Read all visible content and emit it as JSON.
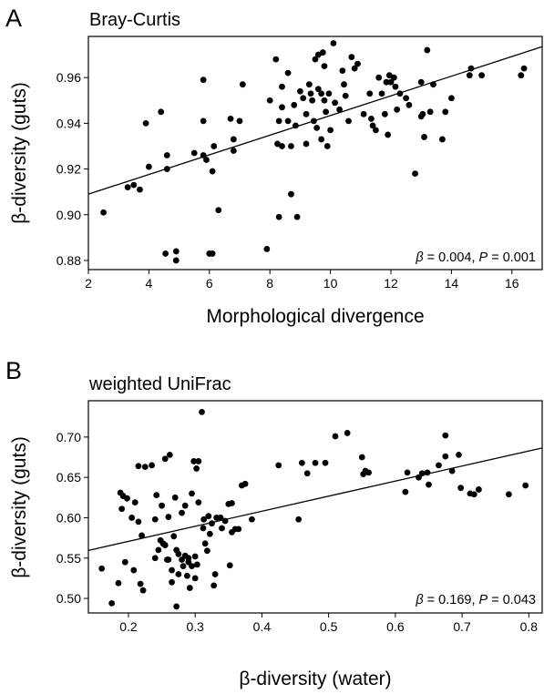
{
  "chart_data": [
    {
      "type": "scatter",
      "panel_label": "A",
      "title": "Bray-Curtis",
      "xlabel": "Morphological divergence",
      "ylabel": "β-diversity (guts)",
      "xlim": [
        2,
        17
      ],
      "ylim": [
        0.876,
        0.978
      ],
      "xticks": [
        2,
        4,
        6,
        8,
        10,
        12,
        14,
        16
      ],
      "yticks": [
        0.88,
        0.9,
        0.92,
        0.94,
        0.96
      ],
      "ytick_labels": [
        "0.88",
        "0.90",
        "0.92",
        "0.94",
        "0.96"
      ],
      "stat": {
        "beta_symbol": "β",
        "beta_value": " = 0.004, ",
        "p_symbol": "P",
        "p_value": " = 0.001"
      },
      "trendline": {
        "x": [
          2,
          17
        ],
        "y": [
          0.909,
          0.9735
        ]
      },
      "grid": false,
      "points": [
        [
          2.5,
          0.901
        ],
        [
          3.3,
          0.912
        ],
        [
          3.5,
          0.913
        ],
        [
          3.7,
          0.911
        ],
        [
          3.9,
          0.94
        ],
        [
          4.0,
          0.921
        ],
        [
          4.4,
          0.945
        ],
        [
          4.6,
          0.926
        ],
        [
          4.6,
          0.92
        ],
        [
          4.55,
          0.883
        ],
        [
          4.9,
          0.88
        ],
        [
          4.9,
          0.884
        ],
        [
          5.5,
          0.927
        ],
        [
          5.8,
          0.959
        ],
        [
          5.8,
          0.941
        ],
        [
          5.8,
          0.926
        ],
        [
          5.9,
          0.924
        ],
        [
          6.0,
          0.883
        ],
        [
          6.1,
          0.883
        ],
        [
          6.1,
          0.919
        ],
        [
          6.15,
          0.93
        ],
        [
          6.3,
          0.902
        ],
        [
          6.7,
          0.942
        ],
        [
          6.8,
          0.928
        ],
        [
          6.8,
          0.933
        ],
        [
          7.0,
          0.941
        ],
        [
          7.1,
          0.957
        ],
        [
          7.9,
          0.885
        ],
        [
          8.0,
          0.95
        ],
        [
          8.2,
          0.968
        ],
        [
          8.25,
          0.931
        ],
        [
          8.3,
          0.941
        ],
        [
          8.3,
          0.899
        ],
        [
          8.4,
          0.93
        ],
        [
          8.4,
          0.947
        ],
        [
          8.4,
          0.956
        ],
        [
          8.6,
          0.962
        ],
        [
          8.6,
          0.941
        ],
        [
          8.7,
          0.909
        ],
        [
          8.7,
          0.93
        ],
        [
          8.8,
          0.948
        ],
        [
          8.85,
          0.939
        ],
        [
          8.9,
          0.899
        ],
        [
          9.0,
          0.954
        ],
        [
          9.1,
          0.951
        ],
        [
          9.2,
          0.944
        ],
        [
          9.2,
          0.931
        ],
        [
          9.3,
          0.957
        ],
        [
          9.35,
          0.953
        ],
        [
          9.4,
          0.95
        ],
        [
          9.45,
          0.941
        ],
        [
          9.5,
          0.968
        ],
        [
          9.55,
          0.938
        ],
        [
          9.6,
          0.97
        ],
        [
          9.6,
          0.955
        ],
        [
          9.7,
          0.953
        ],
        [
          9.7,
          0.933
        ],
        [
          9.75,
          0.971
        ],
        [
          9.8,
          0.965
        ],
        [
          9.8,
          0.95
        ],
        [
          9.85,
          0.945
        ],
        [
          9.9,
          0.93
        ],
        [
          9.95,
          0.953
        ],
        [
          10.0,
          0.937
        ],
        [
          10.1,
          0.975
        ],
        [
          10.15,
          0.949
        ],
        [
          10.3,
          0.946
        ],
        [
          10.4,
          0.963
        ],
        [
          10.45,
          0.957
        ],
        [
          10.5,
          0.952
        ],
        [
          10.6,
          0.941
        ],
        [
          10.7,
          0.969
        ],
        [
          10.8,
          0.964
        ],
        [
          10.9,
          0.966
        ],
        [
          11.1,
          0.944
        ],
        [
          11.3,
          0.953
        ],
        [
          11.35,
          0.942
        ],
        [
          11.4,
          0.939
        ],
        [
          11.5,
          0.937
        ],
        [
          11.6,
          0.96
        ],
        [
          11.7,
          0.953
        ],
        [
          11.8,
          0.944
        ],
        [
          11.85,
          0.958
        ],
        [
          11.9,
          0.935
        ],
        [
          11.95,
          0.961
        ],
        [
          12.0,
          0.958
        ],
        [
          12.1,
          0.96
        ],
        [
          12.15,
          0.956
        ],
        [
          12.2,
          0.946
        ],
        [
          12.3,
          0.953
        ],
        [
          12.5,
          0.951
        ],
        [
          12.6,
          0.948
        ],
        [
          12.8,
          0.918
        ],
        [
          13.0,
          0.958
        ],
        [
          13.0,
          0.943
        ],
        [
          13.05,
          0.944
        ],
        [
          13.1,
          0.934
        ],
        [
          13.2,
          0.972
        ],
        [
          13.3,
          0.945
        ],
        [
          13.4,
          0.957
        ],
        [
          13.7,
          0.933
        ],
        [
          13.8,
          0.945
        ],
        [
          14.0,
          0.951
        ],
        [
          14.6,
          0.961
        ],
        [
          14.65,
          0.964
        ],
        [
          15.0,
          0.961
        ],
        [
          16.3,
          0.961
        ],
        [
          16.4,
          0.964
        ]
      ]
    },
    {
      "type": "scatter",
      "panel_label": "B",
      "title": "weighted UniFrac",
      "xlabel": "β-diversity (water)",
      "ylabel": "β-diversity (guts)",
      "xlim": [
        0.14,
        0.82
      ],
      "ylim": [
        0.482,
        0.745
      ],
      "xticks": [
        0.2,
        0.3,
        0.4,
        0.5,
        0.6,
        0.7,
        0.8
      ],
      "yticks": [
        0.5,
        0.55,
        0.6,
        0.65,
        0.7
      ],
      "ytick_labels": [
        "0.50",
        "0.55",
        "0.60",
        "0.65",
        "0.70"
      ],
      "stat": {
        "beta_symbol": "β",
        "beta_value": " = 0.169, ",
        "p_symbol": "P",
        "p_value": " = 0.043"
      },
      "trendline": {
        "x": [
          0.14,
          0.82
        ],
        "y": [
          0.5595,
          0.6865
        ]
      },
      "grid": false,
      "points": [
        [
          0.16,
          0.537
        ],
        [
          0.175,
          0.494
        ],
        [
          0.185,
          0.519
        ],
        [
          0.188,
          0.631
        ],
        [
          0.19,
          0.611
        ],
        [
          0.192,
          0.627
        ],
        [
          0.195,
          0.545
        ],
        [
          0.198,
          0.624
        ],
        [
          0.205,
          0.6
        ],
        [
          0.208,
          0.535
        ],
        [
          0.21,
          0.619
        ],
        [
          0.215,
          0.595
        ],
        [
          0.215,
          0.664
        ],
        [
          0.218,
          0.518
        ],
        [
          0.22,
          0.578
        ],
        [
          0.222,
          0.51
        ],
        [
          0.225,
          0.663
        ],
        [
          0.235,
          0.665
        ],
        [
          0.24,
          0.55
        ],
        [
          0.24,
          0.598
        ],
        [
          0.242,
          0.628
        ],
        [
          0.245,
          0.56
        ],
        [
          0.248,
          0.572
        ],
        [
          0.25,
          0.615
        ],
        [
          0.252,
          0.568
        ],
        [
          0.255,
          0.673
        ],
        [
          0.255,
          0.566
        ],
        [
          0.258,
          0.548
        ],
        [
          0.26,
          0.601
        ],
        [
          0.26,
          0.548
        ],
        [
          0.262,
          0.678
        ],
        [
          0.265,
          0.535
        ],
        [
          0.265,
          0.52
        ],
        [
          0.268,
          0.577
        ],
        [
          0.27,
          0.625
        ],
        [
          0.272,
          0.49
        ],
        [
          0.272,
          0.56
        ],
        [
          0.275,
          0.53
        ],
        [
          0.275,
          0.555
        ],
        [
          0.28,
          0.548
        ],
        [
          0.28,
          0.606
        ],
        [
          0.282,
          0.54
        ],
        [
          0.285,
          0.615
        ],
        [
          0.285,
          0.553
        ],
        [
          0.288,
          0.528
        ],
        [
          0.29,
          0.55
        ],
        [
          0.29,
          0.545
        ],
        [
          0.292,
          0.513
        ],
        [
          0.295,
          0.63
        ],
        [
          0.295,
          0.54
        ],
        [
          0.298,
          0.67
        ],
        [
          0.3,
          0.552
        ],
        [
          0.3,
          0.525
        ],
        [
          0.302,
          0.661
        ],
        [
          0.303,
          0.542
        ],
        [
          0.305,
          0.67
        ],
        [
          0.305,
          0.619
        ],
        [
          0.31,
          0.731
        ],
        [
          0.312,
          0.587
        ],
        [
          0.313,
          0.598
        ],
        [
          0.315,
          0.568
        ],
        [
          0.318,
          0.559
        ],
        [
          0.32,
          0.602
        ],
        [
          0.322,
          0.58
        ],
        [
          0.325,
          0.593
        ],
        [
          0.328,
          0.516
        ],
        [
          0.33,
          0.53
        ],
        [
          0.332,
          0.6
        ],
        [
          0.338,
          0.6
        ],
        [
          0.34,
          0.587
        ],
        [
          0.345,
          0.596
        ],
        [
          0.35,
          0.617
        ],
        [
          0.352,
          0.541
        ],
        [
          0.355,
          0.582
        ],
        [
          0.355,
          0.618
        ],
        [
          0.36,
          0.586
        ],
        [
          0.365,
          0.586
        ],
        [
          0.37,
          0.64
        ],
        [
          0.375,
          0.642
        ],
        [
          0.385,
          0.598
        ],
        [
          0.425,
          0.665
        ],
        [
          0.455,
          0.598
        ],
        [
          0.46,
          0.668
        ],
        [
          0.468,
          0.655
        ],
        [
          0.48,
          0.668
        ],
        [
          0.495,
          0.668
        ],
        [
          0.51,
          0.701
        ],
        [
          0.528,
          0.705
        ],
        [
          0.55,
          0.675
        ],
        [
          0.552,
          0.654
        ],
        [
          0.555,
          0.658
        ],
        [
          0.56,
          0.656
        ],
        [
          0.615,
          0.632
        ],
        [
          0.618,
          0.656
        ],
        [
          0.635,
          0.65
        ],
        [
          0.64,
          0.655
        ],
        [
          0.648,
          0.656
        ],
        [
          0.65,
          0.641
        ],
        [
          0.665,
          0.665
        ],
        [
          0.675,
          0.702
        ],
        [
          0.675,
          0.676
        ],
        [
          0.685,
          0.658
        ],
        [
          0.695,
          0.678
        ],
        [
          0.698,
          0.637
        ],
        [
          0.712,
          0.63
        ],
        [
          0.718,
          0.629
        ],
        [
          0.725,
          0.635
        ],
        [
          0.77,
          0.629
        ],
        [
          0.795,
          0.64
        ]
      ]
    }
  ]
}
